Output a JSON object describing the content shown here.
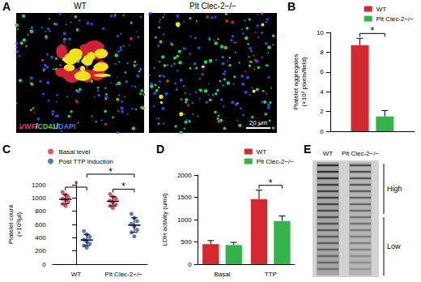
{
  "chart_data": [
    {
      "panel": "B",
      "type": "bar",
      "ylabel": "Platelet aggregates (×10³ pixels/field)",
      "categories": [
        null
      ],
      "series": [
        {
          "name": "WT",
          "color": "#d42a2f",
          "values": [
            8.7
          ],
          "errors": [
            0.7
          ]
        },
        {
          "name": "Plt Clec-2−/−",
          "color": "#35b24a",
          "values": [
            1.5
          ],
          "errors": [
            0.6
          ]
        }
      ],
      "ylim": [
        0,
        10
      ],
      "yticks": [
        0,
        2,
        4,
        6,
        8,
        10
      ],
      "grid": false,
      "legend": "upper right",
      "annotations": [
        {
          "text": "*",
          "from": 0,
          "to": 1
        }
      ]
    },
    {
      "panel": "C",
      "type": "scatter",
      "ylabel": "Platelet count (×10³/μl)",
      "categories": [
        "WT",
        "Plt Clec-2−/−"
      ],
      "series": [
        {
          "name": "Basal level",
          "color": "#d7263d",
          "values": [
            [
              1090,
              1050,
              1010,
              990,
              970,
              940,
              910,
              880
            ],
            [
              1060,
              1020,
              990,
              960,
              930,
              900,
              880,
              850
            ]
          ],
          "mean": [
            980,
            950
          ],
          "sd": [
            70,
            70
          ]
        },
        {
          "name": "Post TTP induction",
          "color": "#2a5caa",
          "values": [
            [
              500,
              450,
              410,
              370,
              340,
              310,
              280,
              250
            ],
            [
              760,
              700,
              650,
              610,
              570,
              520,
              480,
              420
            ]
          ],
          "mean": [
            365,
            590
          ],
          "sd": [
            85,
            110
          ]
        }
      ],
      "ylim": [
        0,
        1200
      ],
      "yticks": [
        0,
        200,
        400,
        600,
        800,
        1000,
        1200
      ],
      "grid": false,
      "legend": "upper left",
      "annotations": [
        {
          "text": "*",
          "from": 0,
          "to": 1
        },
        {
          "text": "*",
          "from": 2,
          "to": 3
        },
        {
          "text": "*",
          "from": 1,
          "to": 3
        }
      ]
    },
    {
      "panel": "D",
      "type": "bar",
      "ylabel": "LDH activity (u/ml)",
      "categories": [
        "Basal",
        "TTP"
      ],
      "series": [
        {
          "name": "WT",
          "color": "#d42a2f",
          "values": [
            450,
            1460
          ],
          "errors": [
            80,
            200
          ]
        },
        {
          "name": "Plt Clec-2−/−",
          "color": "#35b24a",
          "values": [
            430,
            970
          ],
          "errors": [
            60,
            110
          ]
        }
      ],
      "ylim": [
        0,
        2000
      ],
      "yticks": [
        0,
        500,
        1000,
        1500,
        2000
      ],
      "grid": false,
      "legend": "upper right",
      "annotations": [
        {
          "text": "*",
          "from": 2,
          "to": 3
        }
      ]
    }
  ],
  "images": [
    {
      "panel": "A",
      "type": "micrograph",
      "labels": [
        "WT",
        "Plt Clec-2−/−"
      ],
      "stain_label": [
        {
          "text": "VWF",
          "color": "#ee3050"
        },
        {
          "text": "/",
          "color": "#ffffff"
        },
        {
          "text": "CD41",
          "color": "#3ad456"
        },
        {
          "text": "/",
          "color": "#ffffff"
        },
        {
          "text": "DAPI",
          "color": "#4a78f5"
        }
      ],
      "scale_bar": "20 μm"
    },
    {
      "panel": "E",
      "type": "gel",
      "lane_labels": [
        "WT",
        "Plt Clec-2−/−"
      ],
      "range_labels": [
        "High",
        "Low"
      ]
    }
  ]
}
